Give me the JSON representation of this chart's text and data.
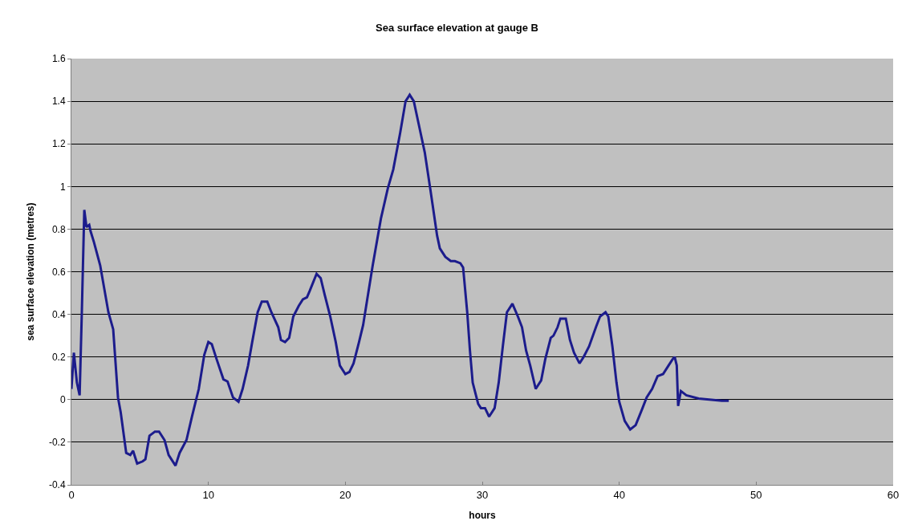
{
  "chart_data": {
    "type": "line",
    "title": "Sea surface elevation at gauge B",
    "xlabel": "hours",
    "ylabel": "sea surface elevation (metres)",
    "x": [
      0,
      0.18,
      0.4,
      0.6,
      0.76,
      0.94,
      1.1,
      1.3,
      1.4,
      1.64,
      2.1,
      2.7,
      3.05,
      3.4,
      3.6,
      4.0,
      4.3,
      4.5,
      4.8,
      5.2,
      5.4,
      5.7,
      6.1,
      6.4,
      6.8,
      7.1,
      7.6,
      7.9,
      8.4,
      8.8,
      9.3,
      9.7,
      10.0,
      10.25,
      10.6,
      11.1,
      11.4,
      11.8,
      12.2,
      12.5,
      12.9,
      13.2,
      13.6,
      13.9,
      14.3,
      14.6,
      15.1,
      15.3,
      15.6,
      15.9,
      16.2,
      16.6,
      16.9,
      17.2,
      17.4,
      17.9,
      18.2,
      18.5,
      18.9,
      19.3,
      19.6,
      20.0,
      20.3,
      20.6,
      21.0,
      21.3,
      21.6,
      22.0,
      22.6,
      23.1,
      23.5,
      24.0,
      24.4,
      24.7,
      25.0,
      25.4,
      25.8,
      26.2,
      26.7,
      26.9,
      27.3,
      27.7,
      28.0,
      28.4,
      28.6,
      28.9,
      29.1,
      29.3,
      29.7,
      29.9,
      30.2,
      30.5,
      30.9,
      31.2,
      31.5,
      31.8,
      32.2,
      32.6,
      32.9,
      33.2,
      33.5,
      33.9,
      34.3,
      34.6,
      35.0,
      35.2,
      35.5,
      35.7,
      36.1,
      36.4,
      36.7,
      37.1,
      37.4,
      37.8,
      38.3,
      38.6,
      39.0,
      39.2,
      39.5,
      39.8,
      40.0,
      40.4,
      40.8,
      41.2,
      41.7,
      42.0,
      42.4,
      42.8,
      43.2,
      43.6,
      43.9,
      44.05,
      44.2,
      44.3,
      44.5,
      44.9,
      45.8,
      47.5,
      48.0
    ],
    "series": [
      {
        "color": "#1c1c8c",
        "values": [
          0.05,
          0.22,
          0.08,
          0.02,
          0.41,
          0.89,
          0.81,
          0.82,
          0.79,
          0.74,
          0.63,
          0.41,
          0.33,
          0.01,
          -0.06,
          -0.25,
          -0.26,
          -0.24,
          -0.3,
          -0.29,
          -0.28,
          -0.17,
          -0.15,
          -0.15,
          -0.19,
          -0.26,
          -0.31,
          -0.25,
          -0.19,
          -0.08,
          0.05,
          0.21,
          0.27,
          0.26,
          0.19,
          0.095,
          0.085,
          0.01,
          -0.01,
          0.05,
          0.16,
          0.27,
          0.41,
          0.46,
          0.46,
          0.41,
          0.34,
          0.28,
          0.27,
          0.29,
          0.39,
          0.44,
          0.47,
          0.48,
          0.51,
          0.59,
          0.57,
          0.49,
          0.39,
          0.27,
          0.16,
          0.12,
          0.13,
          0.17,
          0.27,
          0.35,
          0.47,
          0.63,
          0.85,
          0.99,
          1.08,
          1.25,
          1.4,
          1.43,
          1.4,
          1.28,
          1.16,
          0.99,
          0.77,
          0.71,
          0.67,
          0.65,
          0.65,
          0.64,
          0.62,
          0.41,
          0.23,
          0.08,
          -0.02,
          -0.04,
          -0.04,
          -0.08,
          -0.04,
          0.08,
          0.25,
          0.41,
          0.45,
          0.39,
          0.34,
          0.23,
          0.16,
          0.05,
          0.09,
          0.19,
          0.29,
          0.3,
          0.34,
          0.38,
          0.38,
          0.28,
          0.22,
          0.17,
          0.2,
          0.25,
          0.34,
          0.39,
          0.41,
          0.39,
          0.25,
          0.08,
          -0.01,
          -0.1,
          -0.14,
          -0.12,
          -0.04,
          0.01,
          0.05,
          0.11,
          0.12,
          0.16,
          0.19,
          0.2,
          0.16,
          -0.03,
          0.04,
          0.02,
          0.005,
          -0.005,
          -0.005
        ]
      }
    ],
    "xlim": [
      0,
      60
    ],
    "xticks": [
      0,
      10,
      20,
      30,
      40,
      50,
      60
    ],
    "ylim": [
      -0.4,
      1.6
    ],
    "yticks": [
      -0.4,
      -0.2,
      0,
      0.2,
      0.4,
      0.6,
      0.8,
      1,
      1.2,
      1.4,
      1.6
    ],
    "grid": "y",
    "marker": "none",
    "line_style": "solid"
  }
}
